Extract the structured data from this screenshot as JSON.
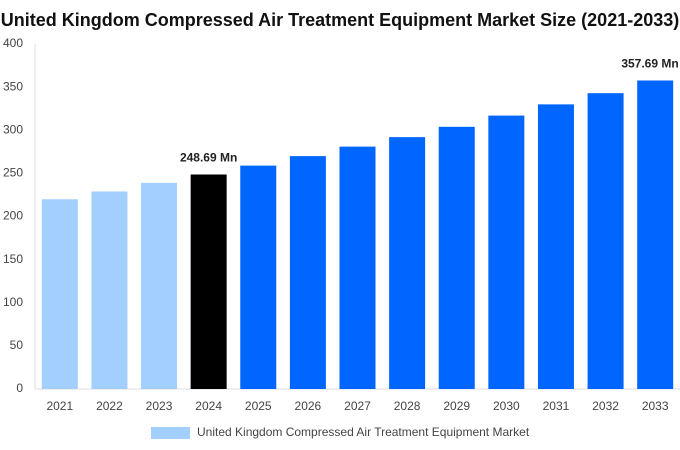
{
  "chart_data": {
    "type": "bar",
    "title": "United Kingdom Compressed Air Treatment Equipment Market Size (2021-2033)",
    "categories": [
      "2021",
      "2022",
      "2023",
      "2024",
      "2025",
      "2026",
      "2027",
      "2028",
      "2029",
      "2030",
      "2031",
      "2032",
      "2033"
    ],
    "series": [
      {
        "name": "United Kingdom Compressed Air Treatment Equipment Market",
        "color": "#a3cfff",
        "colors": [
          "#a3cfff",
          "#a3cfff",
          "#a3cfff",
          "#000000",
          "#0066ff",
          "#0066ff",
          "#0066ff",
          "#0066ff",
          "#0066ff",
          "#0066ff",
          "#0066ff",
          "#0066ff",
          "#0066ff"
        ],
        "values": [
          220,
          229,
          239,
          248.69,
          259,
          270,
          281,
          292,
          304,
          317,
          330,
          343,
          357.69
        ],
        "value_labels": [
          null,
          null,
          null,
          "248.69 Mn",
          null,
          null,
          null,
          null,
          null,
          null,
          null,
          null,
          "357.69 Mn"
        ]
      }
    ],
    "ylim": [
      0,
      400
    ],
    "yticks": [
      0,
      50,
      100,
      150,
      200,
      250,
      300,
      350,
      400
    ],
    "grid": false
  }
}
